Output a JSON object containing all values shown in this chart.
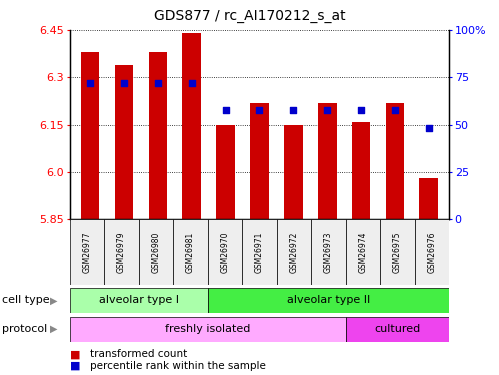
{
  "title": "GDS877 / rc_AI170212_s_at",
  "samples": [
    "GSM26977",
    "GSM26979",
    "GSM26980",
    "GSM26981",
    "GSM26970",
    "GSM26971",
    "GSM26972",
    "GSM26973",
    "GSM26974",
    "GSM26975",
    "GSM26976"
  ],
  "bar_values": [
    6.38,
    6.34,
    6.38,
    6.44,
    6.15,
    6.22,
    6.15,
    6.22,
    6.16,
    6.22,
    5.98
  ],
  "percentile_values": [
    72,
    72,
    72,
    72,
    58,
    58,
    58,
    58,
    58,
    58,
    48
  ],
  "ylim_left": [
    5.85,
    6.45
  ],
  "ylim_right": [
    0,
    100
  ],
  "yticks_left": [
    5.85,
    6.0,
    6.15,
    6.3,
    6.45
  ],
  "yticks_right": [
    0,
    25,
    50,
    75,
    100
  ],
  "ytick_labels_right": [
    "0",
    "25",
    "50",
    "75",
    "100%"
  ],
  "bar_color": "#cc0000",
  "dot_color": "#0000cc",
  "cell_type_groups": [
    {
      "label": "alveolar type I",
      "start": 0,
      "end": 4,
      "color": "#aaffaa"
    },
    {
      "label": "alveolar type II",
      "start": 4,
      "end": 11,
      "color": "#44ee44"
    }
  ],
  "protocol_groups": [
    {
      "label": "freshly isolated",
      "start": 0,
      "end": 8,
      "color": "#ffaaff"
    },
    {
      "label": "cultured",
      "start": 8,
      "end": 11,
      "color": "#ee44ee"
    }
  ],
  "legend_items": [
    {
      "label": "transformed count",
      "color": "#cc0000"
    },
    {
      "label": "percentile rank within the sample",
      "color": "#0000cc"
    }
  ]
}
